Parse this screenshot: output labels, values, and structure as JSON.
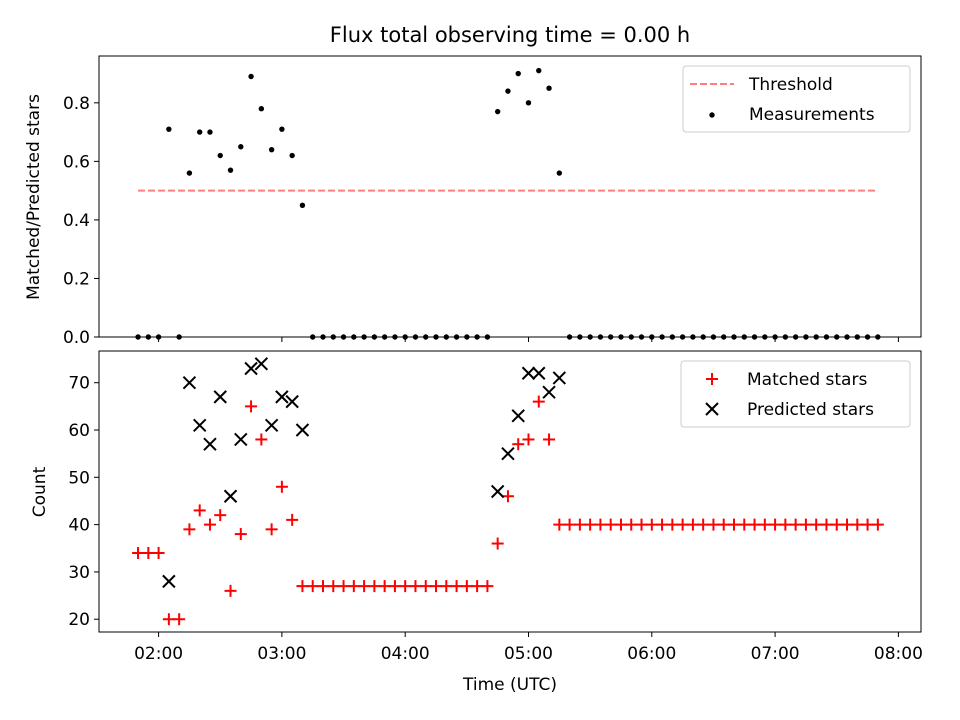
{
  "figure": {
    "title": "Flux total observing time = 0.00 h",
    "xlabel": "Time (UTC)",
    "colors": {
      "threshold": "#ff7f7f",
      "measurement": "#000000",
      "matched": "#ff0000",
      "predicted": "#000000"
    }
  },
  "chart_data": [
    {
      "type": "scatter",
      "ylabel": "Matched/Predicted stars",
      "xlim": [
        "01:31",
        "08:11"
      ],
      "ylim": [
        0,
        0.96
      ],
      "yticks": [
        0.0,
        0.2,
        0.4,
        0.6,
        0.8
      ],
      "ytick_labels": [
        "0.0",
        "0.2",
        "0.4",
        "0.6",
        "0.8"
      ],
      "grid": false,
      "legend": "top-right",
      "threshold": {
        "name": "Threshold",
        "value": 0.5,
        "x_start": "01:50",
        "x_end": "07:50"
      },
      "series": [
        {
          "name": "Measurements",
          "x": [
            "01:50",
            "01:55",
            "02:00",
            "02:05",
            "02:10",
            "02:15",
            "02:20",
            "02:25",
            "02:30",
            "02:35",
            "02:40",
            "02:45",
            "02:50",
            "02:55",
            "03:00",
            "03:05",
            "03:10",
            "03:15",
            "03:20",
            "03:25",
            "03:30",
            "03:35",
            "03:40",
            "03:45",
            "03:50",
            "03:55",
            "04:00",
            "04:05",
            "04:10",
            "04:15",
            "04:20",
            "04:25",
            "04:30",
            "04:35",
            "04:40",
            "04:45",
            "04:50",
            "04:55",
            "05:00",
            "05:05",
            "05:10",
            "05:15",
            "05:20",
            "05:25",
            "05:30",
            "05:35",
            "05:40",
            "05:45",
            "05:50",
            "05:55",
            "06:00",
            "06:05",
            "06:10",
            "06:15",
            "06:20",
            "06:25",
            "06:30",
            "06:35",
            "06:40",
            "06:45",
            "06:50",
            "06:55",
            "07:00",
            "07:05",
            "07:10",
            "07:15",
            "07:20",
            "07:25",
            "07:30",
            "07:35",
            "07:40",
            "07:45",
            "07:50"
          ],
          "y": [
            0,
            0,
            0,
            0.71,
            0,
            0.56,
            0.7,
            0.7,
            0.62,
            0.57,
            0.65,
            0.89,
            0.78,
            0.64,
            0.71,
            0.62,
            0.45,
            0,
            0,
            0,
            0,
            0,
            0,
            0,
            0,
            0,
            0,
            0,
            0,
            0,
            0,
            0,
            0,
            0,
            0,
            0.77,
            0.84,
            0.9,
            0.8,
            0.91,
            0.85,
            0.56,
            0,
            0,
            0,
            0,
            0,
            0,
            0,
            0,
            0,
            0,
            0,
            0,
            0,
            0,
            0,
            0,
            0,
            0,
            0,
            0,
            0,
            0,
            0,
            0,
            0,
            0,
            0,
            0,
            0,
            0,
            0
          ]
        }
      ]
    },
    {
      "type": "scatter",
      "ylabel": "Count",
      "xlim": [
        "01:31",
        "08:11"
      ],
      "ylim": [
        17.3,
        76.7
      ],
      "yticks": [
        20,
        30,
        40,
        50,
        60,
        70
      ],
      "ytick_labels": [
        "20",
        "30",
        "40",
        "50",
        "60",
        "70"
      ],
      "xticks": [
        "02:00",
        "03:00",
        "04:00",
        "05:00",
        "06:00",
        "07:00",
        "08:00"
      ],
      "xtick_labels": [
        "02:00",
        "03:00",
        "04:00",
        "05:00",
        "06:00",
        "07:00",
        "08:00"
      ],
      "grid": false,
      "legend": "top-right",
      "series": [
        {
          "name": "Matched stars",
          "x": [
            "01:50",
            "01:55",
            "02:00",
            "02:05",
            "02:10",
            "02:15",
            "02:20",
            "02:25",
            "02:30",
            "02:35",
            "02:40",
            "02:45",
            "02:50",
            "02:55",
            "03:00",
            "03:05",
            "03:10",
            "03:15",
            "03:20",
            "03:25",
            "03:30",
            "03:35",
            "03:40",
            "03:45",
            "03:50",
            "03:55",
            "04:00",
            "04:05",
            "04:10",
            "04:15",
            "04:20",
            "04:25",
            "04:30",
            "04:35",
            "04:40",
            "04:45",
            "04:50",
            "04:55",
            "05:00",
            "05:05",
            "05:10",
            "05:15",
            "05:20",
            "05:25",
            "05:30",
            "05:35",
            "05:40",
            "05:45",
            "05:50",
            "05:55",
            "06:00",
            "06:05",
            "06:10",
            "06:15",
            "06:20",
            "06:25",
            "06:30",
            "06:35",
            "06:40",
            "06:45",
            "06:50",
            "06:55",
            "07:00",
            "07:05",
            "07:10",
            "07:15",
            "07:20",
            "07:25",
            "07:30",
            "07:35",
            "07:40",
            "07:45",
            "07:50"
          ],
          "y": [
            34,
            34,
            34,
            20,
            20,
            39,
            43,
            40,
            42,
            26,
            38,
            65,
            58,
            39,
            48,
            41,
            27,
            27,
            27,
            27,
            27,
            27,
            27,
            27,
            27,
            27,
            27,
            27,
            27,
            27,
            27,
            27,
            27,
            27,
            27,
            36,
            46,
            57,
            58,
            66,
            58,
            40,
            40,
            40,
            40,
            40,
            40,
            40,
            40,
            40,
            40,
            40,
            40,
            40,
            40,
            40,
            40,
            40,
            40,
            40,
            40,
            40,
            40,
            40,
            40,
            40,
            40,
            40,
            40,
            40,
            40,
            40,
            40
          ]
        },
        {
          "name": "Predicted stars",
          "x": [
            "02:05",
            "02:15",
            "02:20",
            "02:25",
            "02:30",
            "02:35",
            "02:40",
            "02:45",
            "02:50",
            "02:55",
            "03:00",
            "03:05",
            "03:10",
            "04:45",
            "04:50",
            "04:55",
            "05:00",
            "05:05",
            "05:10",
            "05:15"
          ],
          "y": [
            28,
            70,
            61,
            57,
            67,
            46,
            58,
            73,
            74,
            61,
            67,
            66,
            60,
            47,
            55,
            63,
            72,
            72,
            68,
            71
          ]
        }
      ]
    }
  ]
}
